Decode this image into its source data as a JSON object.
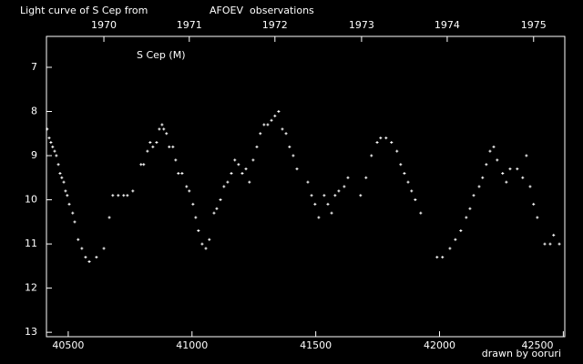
{
  "chart_data": {
    "type": "scatter",
    "title": "Light curve of S Cep from",
    "title_source": "AFOEV",
    "title_suffix": "observations",
    "credit": "drawn by ooruri",
    "text_color": "#ffffff",
    "source_color": "#ffff33",
    "credit_color": "#33ccff",
    "xlim": [
      40412,
      42506
    ],
    "xticks": [
      40500,
      41000,
      41500,
      42000,
      42500
    ],
    "x2ticks": [
      {
        "value": 40644,
        "label": "1970"
      },
      {
        "value": 40989,
        "label": "1971"
      },
      {
        "value": 41335,
        "label": "1972"
      },
      {
        "value": 41685,
        "label": "1973"
      },
      {
        "value": 42031,
        "label": "1974"
      },
      {
        "value": 42380,
        "label": "1975"
      }
    ],
    "ylim": [
      13.1,
      6.3
    ],
    "yticks": [
      7,
      8,
      9,
      10,
      11,
      12,
      13
    ],
    "series": [
      {
        "name": "S Cep (M)",
        "color": "#ffffff",
        "x": [
          40415,
          40423,
          40430,
          40437,
          40445,
          40452,
          40460,
          40467,
          40474,
          40482,
          40489,
          40496,
          40504,
          40518,
          40526,
          40540,
          40555,
          40570,
          40585,
          40614,
          40644,
          40666,
          40680,
          40702,
          40724,
          40739,
          40761,
          40794,
          40805,
          40820,
          40831,
          40842,
          40857,
          40868,
          40879,
          40886,
          40897,
          40908,
          40923,
          40934,
          40945,
          40960,
          40978,
          40989,
          41004,
          41015,
          41026,
          41041,
          41056,
          41070,
          41089,
          41100,
          41115,
          41129,
          41144,
          41159,
          41173,
          41188,
          41203,
          41218,
          41232,
          41247,
          41262,
          41276,
          41291,
          41306,
          41321,
          41335,
          41350,
          41365,
          41380,
          41394,
          41409,
          41424,
          41468,
          41483,
          41497,
          41512,
          41534,
          41549,
          41564,
          41578,
          41593,
          41615,
          41630,
          41681,
          41703,
          41725,
          41748,
          41762,
          41784,
          41806,
          41828,
          41843,
          41858,
          41873,
          41887,
          41902,
          41924,
          41990,
          42012,
          42042,
          42064,
          42086,
          42108,
          42123,
          42138,
          42160,
          42174,
          42189,
          42204,
          42219,
          42233,
          42255,
          42270,
          42285,
          42314,
          42336,
          42351,
          42366,
          42380,
          42395,
          42425,
          42447,
          42461,
          42484
        ],
        "values": [
          8.4,
          8.6,
          8.7,
          8.8,
          8.9,
          9.0,
          9.2,
          9.4,
          9.5,
          9.6,
          9.8,
          9.9,
          10.1,
          10.3,
          10.5,
          10.9,
          11.1,
          11.3,
          11.4,
          11.3,
          11.1,
          10.4,
          9.9,
          9.9,
          9.9,
          9.9,
          9.8,
          9.2,
          9.2,
          8.9,
          8.7,
          8.8,
          8.7,
          8.4,
          8.3,
          8.4,
          8.5,
          8.8,
          8.8,
          9.1,
          9.4,
          9.4,
          9.7,
          9.8,
          10.1,
          10.4,
          10.7,
          11.0,
          11.1,
          10.9,
          10.3,
          10.2,
          10.0,
          9.7,
          9.6,
          9.4,
          9.1,
          9.2,
          9.4,
          9.3,
          9.6,
          9.1,
          8.8,
          8.5,
          8.3,
          8.3,
          8.2,
          8.1,
          8.0,
          8.4,
          8.5,
          8.8,
          9.0,
          9.3,
          9.6,
          9.9,
          10.1,
          10.4,
          9.9,
          10.1,
          10.3,
          9.9,
          9.8,
          9.7,
          9.5,
          9.9,
          9.5,
          9.0,
          8.7,
          8.6,
          8.6,
          8.7,
          8.9,
          9.2,
          9.4,
          9.6,
          9.8,
          10.0,
          10.3,
          11.3,
          11.3,
          11.1,
          10.9,
          10.7,
          10.4,
          10.2,
          9.9,
          9.7,
          9.5,
          9.2,
          8.9,
          8.8,
          9.1,
          9.4,
          9.6,
          9.3,
          9.3,
          9.5,
          9.0,
          9.7,
          10.1,
          10.4,
          11.0,
          11.0,
          10.8,
          11.0
        ]
      }
    ]
  }
}
